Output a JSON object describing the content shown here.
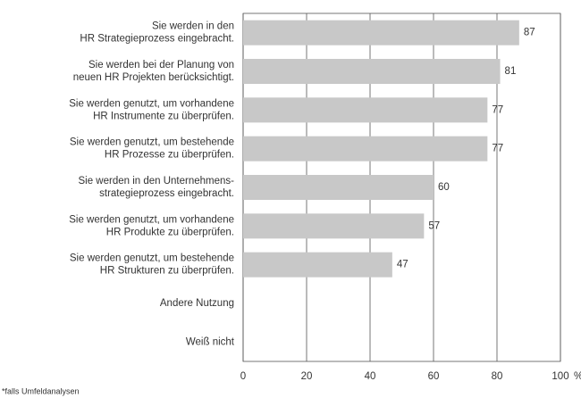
{
  "chart_data": {
    "type": "bar",
    "orientation": "horizontal",
    "categories": [
      [
        "Sie werden in den",
        "HR Strategieprozess eingebracht."
      ],
      [
        "Sie werden bei der Planung von",
        "neuen HR Projekten berücksichtigt."
      ],
      [
        "Sie werden genutzt, um vorhandene",
        "HR Instrumente zu überprüfen."
      ],
      [
        "Sie werden genutzt, um bestehende",
        "HR Prozesse zu überprüfen."
      ],
      [
        "Sie werden in den Unternehmens-",
        "strategieprozess eingebracht."
      ],
      [
        "Sie werden genutzt, um vorhandene",
        "HR Produkte zu überprüfen."
      ],
      [
        "Sie werden genutzt, um bestehende",
        "HR Strukturen zu überprüfen."
      ],
      [
        "Andere Nutzung"
      ],
      [
        "Weiß nicht"
      ]
    ],
    "values": [
      87,
      81,
      77,
      77,
      60,
      57,
      47,
      null,
      null
    ],
    "color": "#c8c8c8",
    "xlim": [
      0,
      100
    ],
    "xticks": [
      0,
      20,
      40,
      60,
      80,
      100
    ],
    "xlabel": "%",
    "grid": true,
    "footnote": "*falls Umfeldanalysen"
  }
}
